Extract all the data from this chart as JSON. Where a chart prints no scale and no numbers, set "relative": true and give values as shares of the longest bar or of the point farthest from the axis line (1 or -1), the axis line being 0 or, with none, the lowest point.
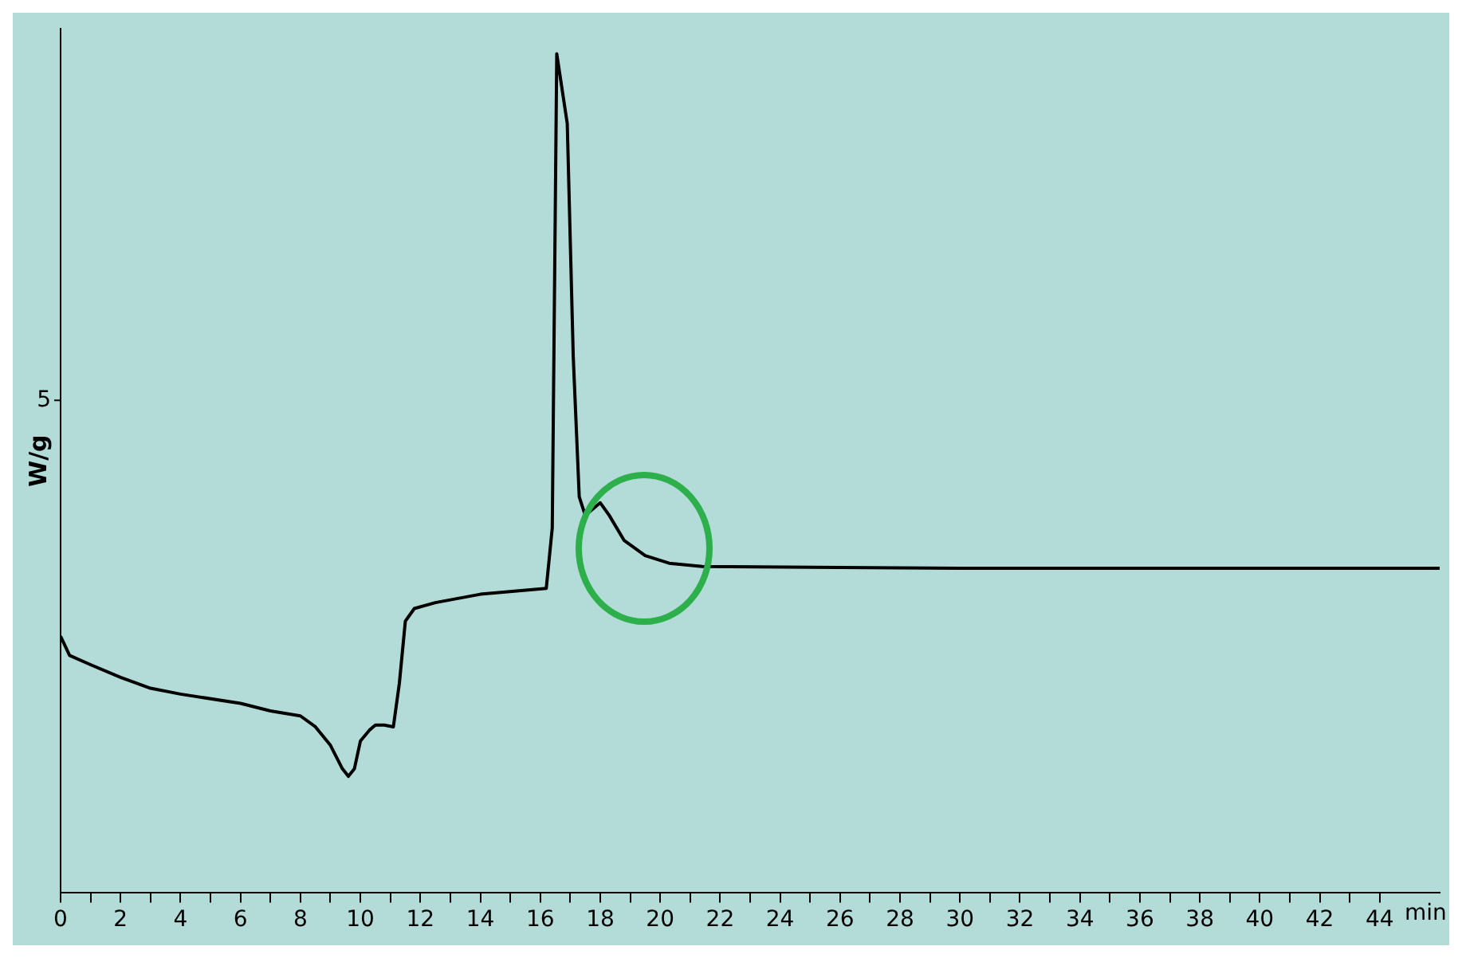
{
  "chart_data": {
    "type": "line",
    "relative": true,
    "xlabel": "min",
    "ylabel": "W/g",
    "annotations": [
      "5"
    ],
    "x": [
      0,
      0.3,
      1,
      2,
      3,
      4,
      6,
      7,
      8,
      8.5,
      9,
      9.4,
      9.6,
      9.8,
      10,
      10.3,
      10.5,
      10.8,
      11.1,
      11.3,
      11.5,
      11.8,
      12.5,
      14,
      16.2,
      16.4,
      16.55,
      16.9,
      17.1,
      17.3,
      17.5,
      18,
      18.3,
      18.8,
      19.5,
      20.3,
      21.4,
      30,
      46
    ],
    "series": [
      {
        "color": "#000000",
        "values": [
          0.306,
          0.283,
          0.272,
          0.257,
          0.244,
          0.237,
          0.226,
          0.217,
          0.211,
          0.198,
          0.176,
          0.148,
          0.139,
          0.148,
          0.181,
          0.194,
          0.2,
          0.2,
          0.198,
          0.25,
          0.324,
          0.339,
          0.346,
          0.356,
          0.363,
          0.435,
          1,
          0.917,
          0.639,
          0.472,
          0.45,
          0.465,
          0.45,
          0.42,
          0.402,
          0.393,
          0.389,
          0.387,
          0.387
        ]
      }
    ],
    "xlim": [
      0,
      46
    ],
    "xticks": [
      0,
      {
        "value": 1,
        "label": null
      },
      2,
      {
        "value": 3,
        "label": null
      },
      4,
      {
        "value": 5,
        "label": null
      },
      6,
      {
        "value": 7,
        "label": null
      },
      8,
      {
        "value": 9,
        "label": null
      },
      10,
      {
        "value": 11,
        "label": null
      },
      12,
      {
        "value": 13,
        "label": null
      },
      14,
      {
        "value": 15,
        "label": null
      },
      16,
      {
        "value": 17,
        "label": null
      },
      18,
      {
        "value": 19,
        "label": null
      },
      20,
      {
        "value": 21,
        "label": null
      },
      22,
      {
        "value": 23,
        "label": null
      },
      24,
      {
        "value": 25,
        "label": null
      },
      26,
      {
        "value": 27,
        "label": null
      },
      28,
      {
        "value": 29,
        "label": null
      },
      30,
      {
        "value": 31,
        "label": null
      },
      32,
      {
        "value": 33,
        "label": null
      },
      34,
      {
        "value": 35,
        "label": null
      },
      36,
      {
        "value": 37,
        "label": null
      },
      38,
      {
        "value": 39,
        "label": null
      },
      40,
      {
        "value": 41,
        "label": null
      },
      42,
      {
        "value": 43,
        "label": null
      },
      44
    ],
    "grid": false,
    "legend": false,
    "marker": "none",
    "line_style": "solid"
  }
}
